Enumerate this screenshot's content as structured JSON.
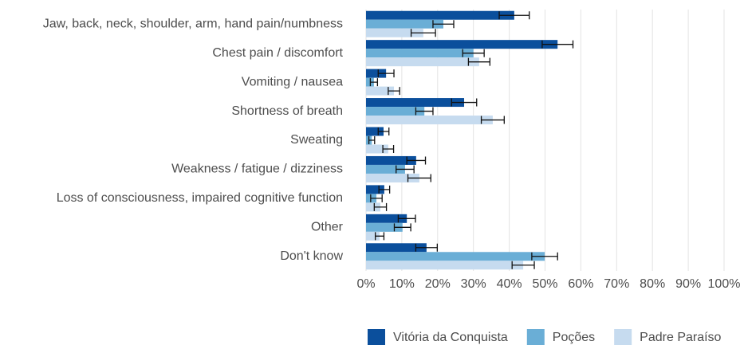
{
  "chart_data": {
    "type": "bar",
    "orientation": "horizontal",
    "categories": [
      "Jaw, back, neck, shoulder, arm, hand pain/numbness",
      "Chest pain / discomfort",
      "Vomiting / nausea",
      "Shortness of breath",
      "Sweating",
      "Weakness / fatigue / dizziness",
      "Loss of consciousness, impaired cognitive function",
      "Other",
      "Don't know"
    ],
    "series": [
      {
        "name": "Vitória da Conquista",
        "color": "#0b4f9c",
        "values": [
          41.4,
          53.5,
          5.6,
          27.4,
          4.9,
          14,
          5.1,
          11.4,
          16.9
        ],
        "errors": [
          4.2,
          4.3,
          2.2,
          3.5,
          1.5,
          2.6,
          1.5,
          2.4,
          3
        ]
      },
      {
        "name": "Poções",
        "color": "#6aaed6",
        "values": [
          21.6,
          30,
          2.2,
          16.3,
          1.6,
          10.9,
          2.9,
          10.2,
          49.9
        ],
        "errors": [
          2.9,
          3,
          1,
          2.4,
          0.8,
          2.5,
          1.6,
          2.3,
          3.6
        ]
      },
      {
        "name": "Padre Paraíso",
        "color": "#c6dbef",
        "values": [
          16,
          31.6,
          7.8,
          35.4,
          6.2,
          14.9,
          4,
          3.8,
          43.9
        ],
        "errors": [
          3.4,
          3,
          1.6,
          3.2,
          1.5,
          3.2,
          1.7,
          1.2,
          3.1
        ]
      }
    ],
    "xlim": [
      0,
      100
    ],
    "xticks": [
      {
        "value": 0,
        "label": "0%"
      },
      {
        "value": 10,
        "label": "10%"
      },
      {
        "value": 20,
        "label": "20%"
      },
      {
        "value": 30,
        "label": "30%"
      },
      {
        "value": 40,
        "label": "40%"
      },
      {
        "value": 50,
        "label": "50%"
      },
      {
        "value": 60,
        "label": "60%"
      },
      {
        "value": 70,
        "label": "70%"
      },
      {
        "value": 80,
        "label": "80%"
      },
      {
        "value": 90,
        "label": "90%"
      },
      {
        "value": 100,
        "label": "100%"
      }
    ],
    "grid": true,
    "legend": "bottom"
  }
}
